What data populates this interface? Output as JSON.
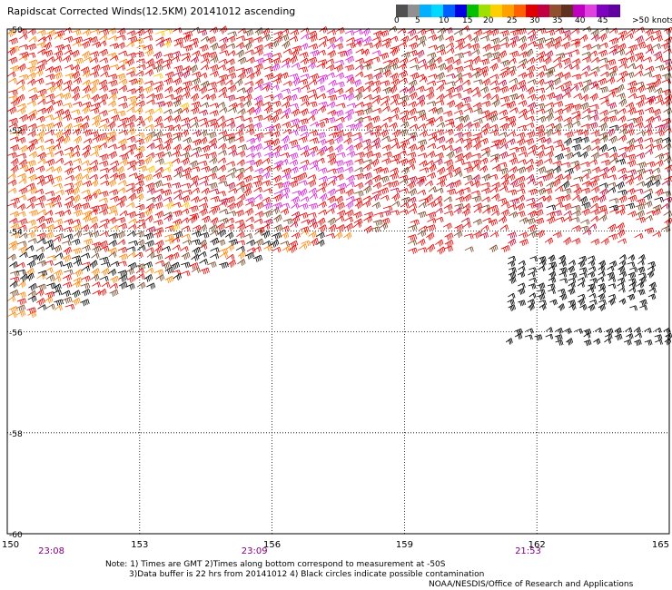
{
  "title": "Rapidscat Corrected Winds(12.5KM) 20141012 ascending",
  "colorbar": {
    "colors": [
      "#505050",
      "#909090",
      "#00b0ff",
      "#00d8ff",
      "#0060ff",
      "#0000e0",
      "#00c000",
      "#a0e000",
      "#ffd000",
      "#ffa000",
      "#ff6000",
      "#e00000",
      "#c00040",
      "#905030",
      "#603020",
      "#c000c0",
      "#e040e0",
      "#8000c0",
      "#6000a0"
    ],
    "labels": [
      "0",
      "5",
      "10",
      "15",
      "20",
      "25",
      "30",
      "35",
      "40",
      "45",
      ">50 knots"
    ]
  },
  "map": {
    "lon_ticks": [
      "150",
      "153",
      "156",
      "159",
      "162",
      "165"
    ],
    "lat_ticks": [
      "-50",
      "-52",
      "-54",
      "-56",
      "-58",
      "-60"
    ],
    "time_labels": [
      {
        "lon": 151,
        "text": "23:08"
      },
      {
        "lon": 155.6,
        "text": "23:09"
      },
      {
        "lon": 161.8,
        "text": "21:53"
      }
    ],
    "lon_range": [
      150,
      165
    ],
    "lat_range": [
      -60,
      -50
    ]
  },
  "footer": {
    "note_line_1": "Note: 1) Times are GMT 2)Times along bottom correspond to measurement at -50S",
    "note_line_2": "3)Data buffer is 22 hrs from 20141012 4) Black circles indicate possible contamination",
    "credit": "NOAA/NESDIS/Office of Research and Applications"
  }
}
